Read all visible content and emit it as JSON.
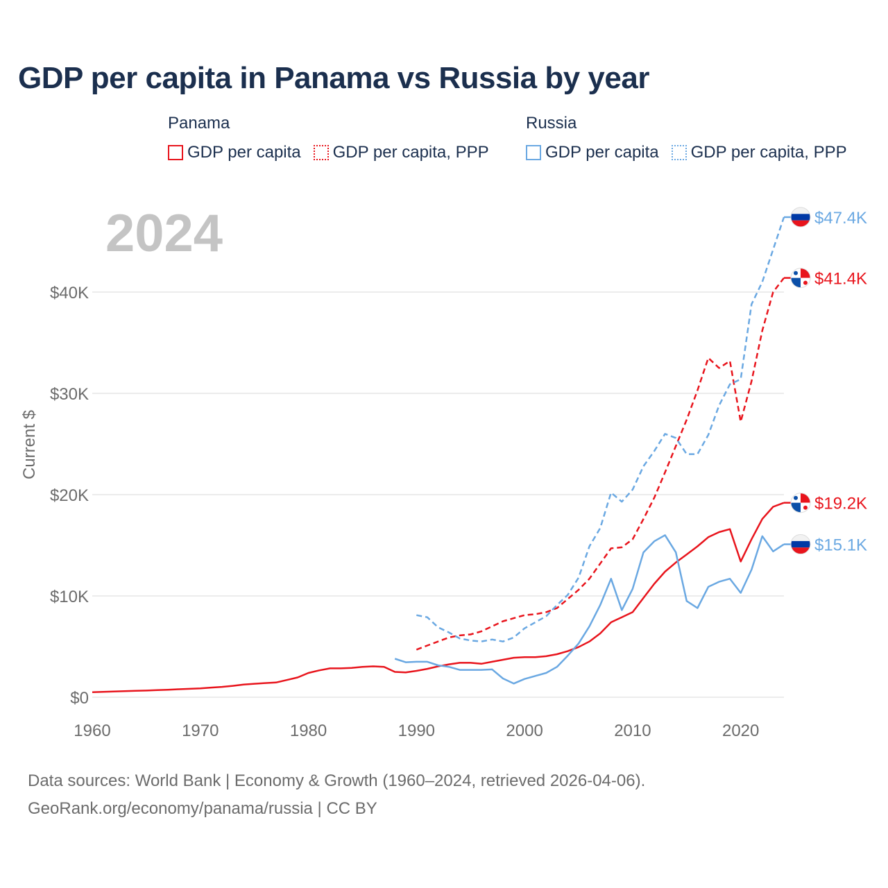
{
  "title": "GDP per capita in Panama vs Russia by year",
  "legend": {
    "panama": {
      "name": "Panama",
      "gdp": "GDP per capita",
      "ppp": "GDP per capita, PPP"
    },
    "russia": {
      "name": "Russia",
      "gdp": "GDP per capita",
      "ppp": "GDP per capita, PPP"
    }
  },
  "year_label": "2024",
  "source_line1": "Data sources: World Bank | Economy & Growth (1960–2024, retrieved 2026-04-06).",
  "source_line2": "GeoRank.org/economy/panama/russia | CC BY",
  "colors": {
    "panama": "#e8141c",
    "russia": "#6aa8e2",
    "grid": "#e6e6e6",
    "tick": "#6b6b6b",
    "year": "#c4c4c4"
  },
  "chart_data": {
    "type": "line",
    "title": "GDP per capita in Panama vs Russia by year",
    "xlabel": "",
    "ylabel": "Current $",
    "xlim": [
      1960,
      2024
    ],
    "ylim": [
      0,
      47400
    ],
    "x_ticks": [
      1960,
      1970,
      1980,
      1990,
      2000,
      2010,
      2020
    ],
    "y_ticks": [
      {
        "value": 0,
        "label": "$0"
      },
      {
        "value": 10000,
        "label": "$10K"
      },
      {
        "value": 20000,
        "label": "$20K"
      },
      {
        "value": 30000,
        "label": "$30K"
      },
      {
        "value": 40000,
        "label": "$40K"
      }
    ],
    "series": [
      {
        "name": "Panama GDP per capita",
        "country": "panama",
        "style": "solid",
        "end_label": "$19.2K",
        "flag": "panama-flag",
        "x": [
          1960,
          1961,
          1962,
          1963,
          1964,
          1965,
          1966,
          1967,
          1968,
          1969,
          1970,
          1971,
          1972,
          1973,
          1974,
          1975,
          1976,
          1977,
          1978,
          1979,
          1980,
          1981,
          1982,
          1983,
          1984,
          1985,
          1986,
          1987,
          1988,
          1989,
          1990,
          1991,
          1992,
          1993,
          1994,
          1995,
          1996,
          1997,
          1998,
          1999,
          2000,
          2001,
          2002,
          2003,
          2004,
          2005,
          2006,
          2007,
          2008,
          2009,
          2010,
          2011,
          2012,
          2013,
          2014,
          2015,
          2016,
          2017,
          2018,
          2019,
          2020,
          2021,
          2022,
          2023,
          2024
        ],
        "values": [
          500,
          530,
          570,
          600,
          630,
          660,
          700,
          740,
          790,
          830,
          880,
          950,
          1020,
          1120,
          1250,
          1330,
          1400,
          1450,
          1700,
          1950,
          2400,
          2650,
          2850,
          2850,
          2900,
          3000,
          3050,
          3000,
          2500,
          2450,
          2600,
          2800,
          3050,
          3250,
          3400,
          3400,
          3300,
          3500,
          3700,
          3900,
          3950,
          3950,
          4050,
          4250,
          4550,
          4950,
          5500,
          6300,
          7400,
          7900,
          8400,
          9800,
          11200,
          12400,
          13300,
          14100,
          14900,
          15800,
          16300,
          16600,
          13400,
          15600,
          17600,
          18800,
          19200
        ]
      },
      {
        "name": "Panama GDP per capita, PPP",
        "country": "panama",
        "style": "dash",
        "end_label": "$41.4K",
        "flag": "panama-flag",
        "x": [
          1990,
          1991,
          1992,
          1993,
          1994,
          1995,
          1996,
          1997,
          1998,
          1999,
          2000,
          2001,
          2002,
          2003,
          2004,
          2005,
          2006,
          2007,
          2008,
          2009,
          2010,
          2011,
          2012,
          2013,
          2014,
          2015,
          2016,
          2017,
          2018,
          2019,
          2020,
          2021,
          2022,
          2023,
          2024
        ],
        "values": [
          4700,
          5100,
          5500,
          5900,
          6100,
          6200,
          6500,
          7000,
          7500,
          7800,
          8100,
          8200,
          8400,
          8800,
          9700,
          10600,
          11700,
          13200,
          14700,
          14800,
          15600,
          17600,
          19700,
          22200,
          24800,
          27400,
          30300,
          33500,
          32500,
          33200,
          27200,
          31200,
          36200,
          40000,
          41400
        ]
      },
      {
        "name": "Russia GDP per capita",
        "country": "russia",
        "style": "solid",
        "end_label": "$15.1K",
        "flag": "russia-flag",
        "x": [
          1988,
          1989,
          1990,
          1991,
          1992,
          1993,
          1994,
          1995,
          1996,
          1997,
          1998,
          1999,
          2000,
          2001,
          2002,
          2003,
          2004,
          2005,
          2006,
          2007,
          2008,
          2009,
          2010,
          2011,
          2012,
          2013,
          2014,
          2015,
          2016,
          2017,
          2018,
          2019,
          2020,
          2021,
          2022,
          2023,
          2024
        ],
        "values": [
          3800,
          3450,
          3500,
          3500,
          3150,
          3000,
          2700,
          2700,
          2700,
          2750,
          1850,
          1350,
          1800,
          2100,
          2400,
          3000,
          4100,
          5300,
          7000,
          9100,
          11700,
          8600,
          10700,
          14300,
          15400,
          16000,
          14300,
          9500,
          8800,
          10900,
          11400,
          11700,
          10300,
          12600,
          15900,
          14400,
          15100
        ]
      },
      {
        "name": "Russia GDP per capita, PPP",
        "country": "russia",
        "style": "dash",
        "end_label": "$47.4K",
        "flag": "russia-flag",
        "x": [
          1990,
          1991,
          1992,
          1993,
          1994,
          1995,
          1996,
          1997,
          1998,
          1999,
          2000,
          2001,
          2002,
          2003,
          2004,
          2005,
          2006,
          2007,
          2008,
          2009,
          2010,
          2011,
          2012,
          2013,
          2014,
          2015,
          2016,
          2017,
          2018,
          2019,
          2020,
          2021,
          2022,
          2023,
          2024
        ],
        "values": [
          8100,
          7900,
          6900,
          6400,
          5800,
          5600,
          5500,
          5700,
          5500,
          5900,
          6800,
          7400,
          8000,
          9100,
          10100,
          11800,
          14900,
          16700,
          20200,
          19300,
          20500,
          22800,
          24300,
          26000,
          25600,
          24000,
          24000,
          25900,
          28800,
          30900,
          31400,
          38800,
          41000,
          44200,
          47400
        ]
      }
    ]
  }
}
